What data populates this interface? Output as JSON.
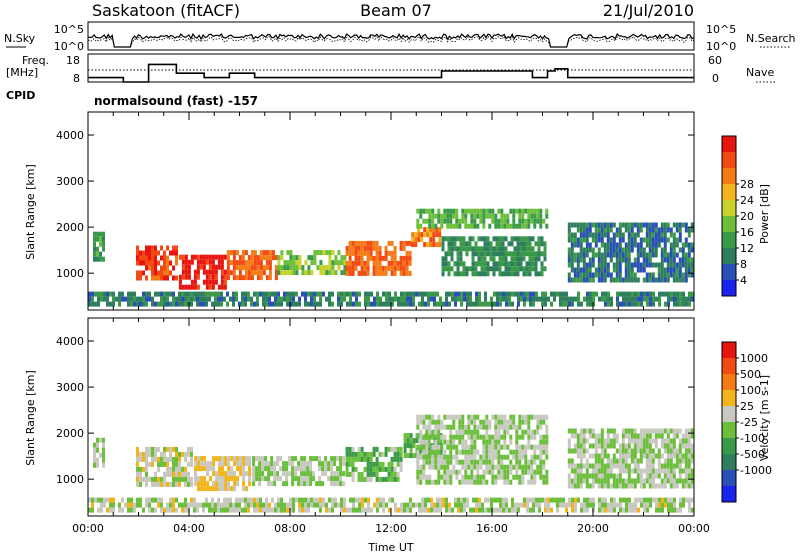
{
  "header": {
    "station": "Saskatoon (fitACF)",
    "beam": "Beam 07",
    "date": "21/Jul/2010"
  },
  "noise_panel": {
    "left_label": "N.Sky",
    "right_label": "N.Search",
    "left_ticks": [
      "10^5",
      "10^0"
    ],
    "right_ticks": [
      "10^5",
      "10^0"
    ]
  },
  "freq_panel": {
    "left_label_1": "Freq.",
    "left_label_2": "[MHz]",
    "right_label": "Nave",
    "left_ticks": [
      "18",
      "8"
    ],
    "right_ticks": [
      "60",
      "0"
    ],
    "freq_levels_mhz": [
      {
        "t": 0.0,
        "v": 10
      },
      {
        "t": 1.35,
        "v": 10
      },
      {
        "t": 1.4,
        "v": 8
      },
      {
        "t": 2.4,
        "v": 16
      },
      {
        "t": 3.5,
        "v": 12
      },
      {
        "t": 4.6,
        "v": 10
      },
      {
        "t": 5.6,
        "v": 12
      },
      {
        "t": 6.6,
        "v": 10
      },
      {
        "t": 14.0,
        "v": 13
      },
      {
        "t": 15.4,
        "v": 13
      },
      {
        "t": 17.6,
        "v": 10
      },
      {
        "t": 18.2,
        "v": 13
      },
      {
        "t": 18.5,
        "v": 14
      },
      {
        "t": 19.0,
        "v": 10
      },
      {
        "t": 24.0,
        "v": 10
      }
    ]
  },
  "cpid": {
    "label": "CPID",
    "mode": "normalsound (fast) -157"
  },
  "chart_data": [
    {
      "type": "heatmap",
      "quantity": "Power",
      "xlabel": "",
      "ylabel": "Slant Range [km]",
      "xlim": [
        0,
        24
      ],
      "ylim": [
        200,
        4500
      ],
      "yticks": [
        "1000",
        "2000",
        "3000",
        "4000"
      ],
      "colorbar": {
        "label": "Power [dB]",
        "ticks": [
          "4",
          "8",
          "12",
          "16",
          "20",
          "24",
          "28"
        ],
        "colors": [
          "#1b24ee",
          "#2a4fb8",
          "#2f7f5e",
          "#3a9a4a",
          "#6bbf3a",
          "#c9d12f",
          "#f1b51b",
          "#f47b16",
          "#f24a12",
          "#e8140f"
        ]
      },
      "regions": [
        {
          "t0": 0.2,
          "t1": 0.7,
          "r0": 1200,
          "r1": 1900,
          "v": 10
        },
        {
          "t0": 1.9,
          "t1": 3.6,
          "r0": 800,
          "r1": 1600,
          "v": 26
        },
        {
          "t0": 3.6,
          "t1": 5.5,
          "r0": 600,
          "r1": 1400,
          "v": 29
        },
        {
          "t0": 5.5,
          "t1": 7.5,
          "r0": 900,
          "r1": 1500,
          "v": 24
        },
        {
          "t0": 7.5,
          "t1": 10.2,
          "r0": 1000,
          "r1": 1500,
          "v": 14
        },
        {
          "t0": 10.2,
          "t1": 12.8,
          "r0": 900,
          "r1": 1700,
          "v": 24
        },
        {
          "t0": 12.8,
          "t1": 14.0,
          "r0": 1600,
          "r1": 2000,
          "v": 23
        },
        {
          "t0": 13.0,
          "t1": 18.2,
          "r0": 2000,
          "r1": 2400,
          "v": 12
        },
        {
          "t0": 14.0,
          "t1": 18.2,
          "r0": 900,
          "r1": 1800,
          "v": 9
        },
        {
          "t0": 19.0,
          "t1": 24.0,
          "r0": 800,
          "r1": 2100,
          "v": 7
        },
        {
          "t0": 0.0,
          "t1": 24.0,
          "r0": 250,
          "r1": 600,
          "v": 8
        }
      ]
    },
    {
      "type": "heatmap",
      "quantity": "Velocity",
      "xlabel": "Time UT",
      "ylabel": "Slant Range [km]",
      "xlim": [
        0,
        24
      ],
      "ylim": [
        200,
        4500
      ],
      "xticks": [
        "00:00",
        "04:00",
        "08:00",
        "12:00",
        "16:00",
        "20:00",
        "00:00"
      ],
      "yticks": [
        "1000",
        "2000",
        "3000",
        "4000"
      ],
      "colorbar": {
        "label": "Velocity [m s-1]",
        "ticks": [
          "1000",
          "500",
          "100",
          "25",
          "-25",
          "-100",
          "-500",
          "-1000"
        ],
        "colors": [
          "#1b24ee",
          "#2a4fb8",
          "#2f7f5e",
          "#3a9a4a",
          "#6bbf3a",
          "#c8c8c0",
          "#f1b51b",
          "#f47b16",
          "#f24a12",
          "#e8140f"
        ]
      },
      "regions": [
        {
          "t0": 0.2,
          "t1": 0.7,
          "r0": 1200,
          "r1": 1900,
          "v": 0
        },
        {
          "t0": 1.9,
          "t1": 4.2,
          "r0": 800,
          "r1": 1700,
          "v": 80
        },
        {
          "t0": 4.2,
          "t1": 6.5,
          "r0": 700,
          "r1": 1500,
          "v": 200
        },
        {
          "t0": 6.5,
          "t1": 10.2,
          "r0": 900,
          "r1": 1500,
          "v": 0
        },
        {
          "t0": 10.2,
          "t1": 12.5,
          "r0": 900,
          "r1": 1700,
          "v": -150
        },
        {
          "t0": 12.5,
          "t1": 14.0,
          "r0": 1500,
          "r1": 2000,
          "v": -200
        },
        {
          "t0": 13.0,
          "t1": 18.2,
          "r0": 900,
          "r1": 2400,
          "v": 0
        },
        {
          "t0": 19.0,
          "t1": 24.0,
          "r0": 800,
          "r1": 2100,
          "v": 0
        },
        {
          "t0": 0.0,
          "t1": 24.0,
          "r0": 250,
          "r1": 600,
          "v": 40
        }
      ]
    }
  ]
}
